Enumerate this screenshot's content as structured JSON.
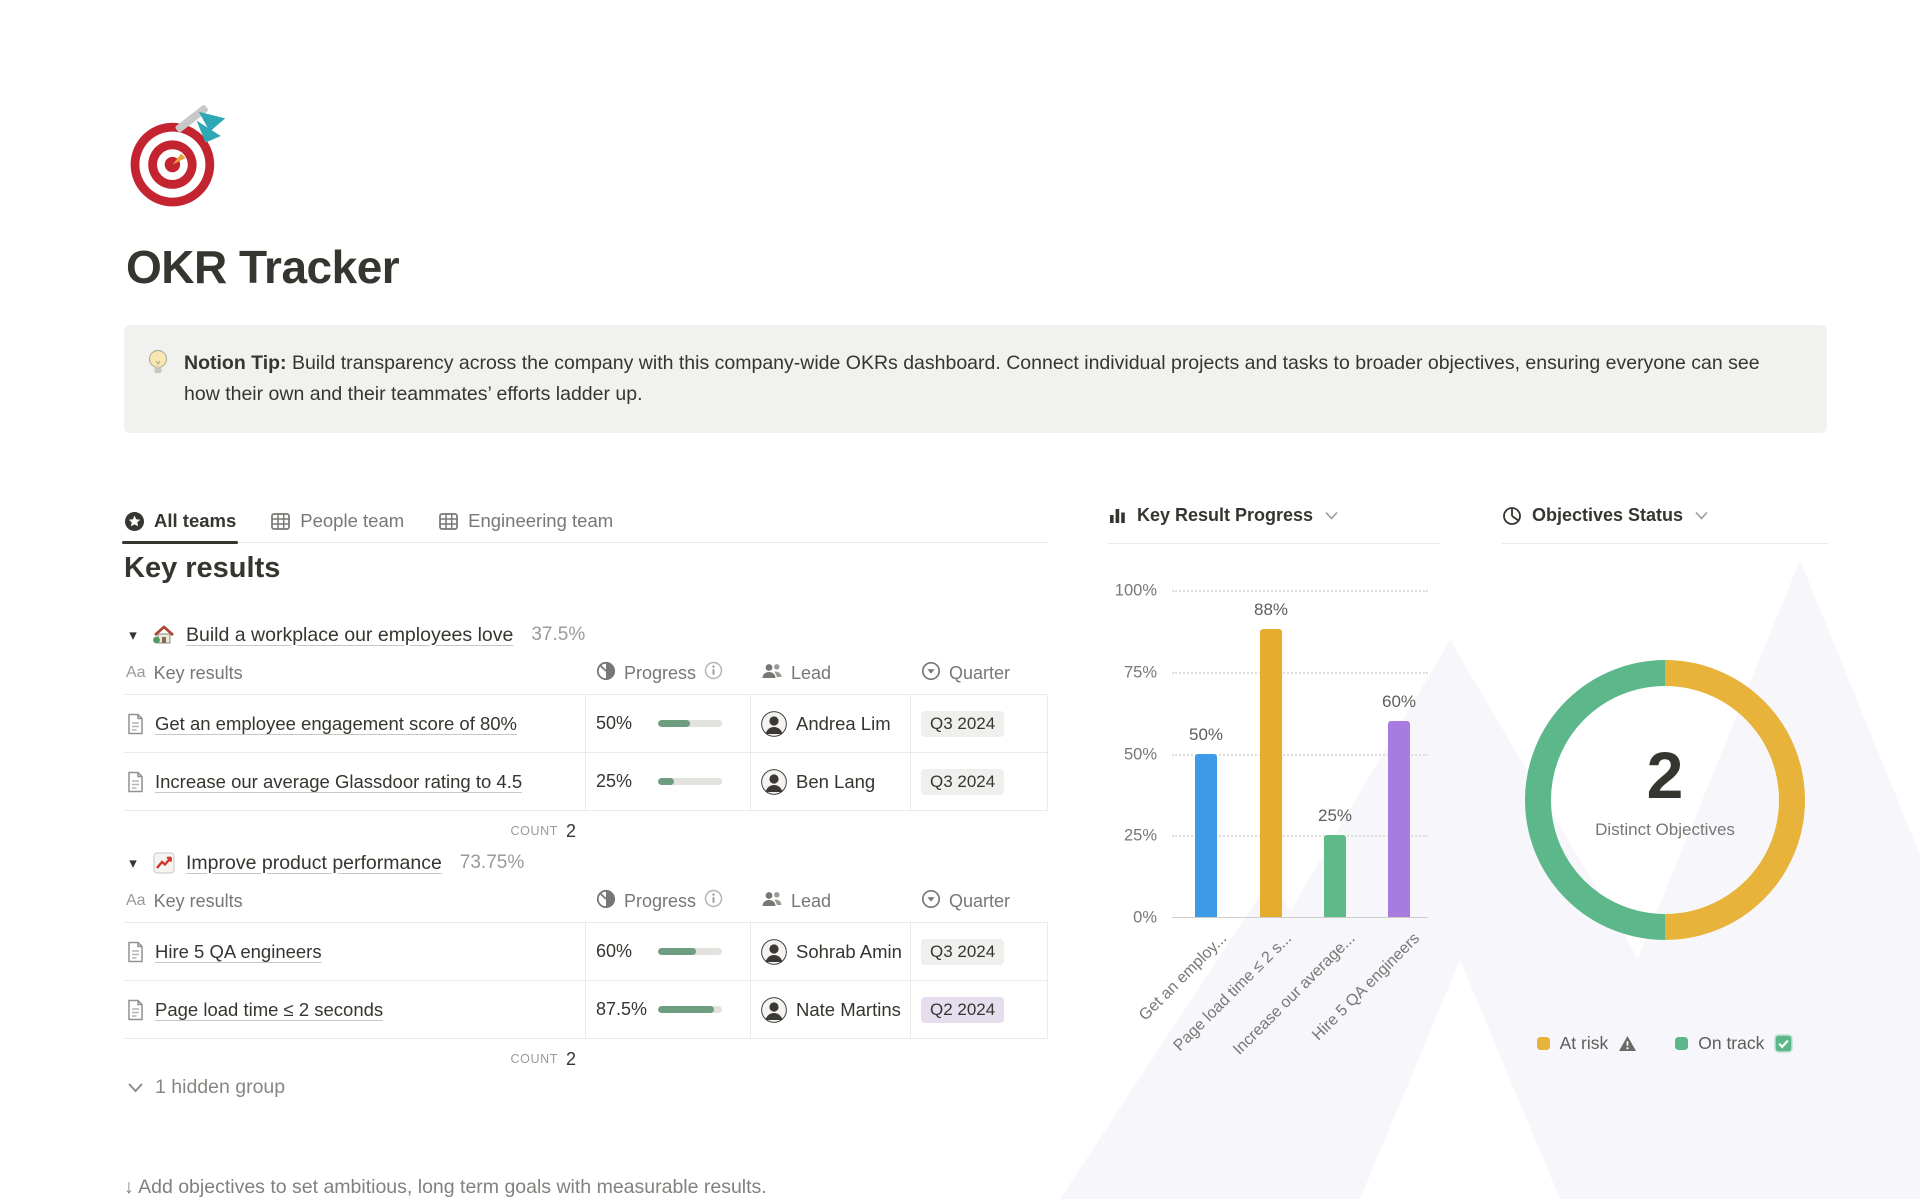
{
  "page": {
    "title": "OKR Tracker",
    "icon": "target-dart-icon"
  },
  "callout": {
    "icon": "light-bulb-icon",
    "bold": "Notion Tip:",
    "text": " Build transparency across the company with this company-wide OKRs dashboard. Connect individual projects and tasks to broader objectives, ensuring everyone can see how their own and their teammates’ efforts ladder up."
  },
  "tabs": [
    {
      "label": "All teams",
      "icon": "star-circle-icon",
      "active": true
    },
    {
      "label": "People team",
      "icon": "table-view-icon",
      "active": false
    },
    {
      "label": "Engineering team",
      "icon": "table-view-icon",
      "active": false
    }
  ],
  "section_heading": "Key results",
  "table_header": {
    "title_icon": "Aa",
    "title": "Key results",
    "progress": "Progress",
    "lead": "Lead",
    "quarter": "Quarter"
  },
  "groups": [
    {
      "icon": "house-garden-icon",
      "title": "Build a workplace our employees love",
      "percent": "37.5%",
      "count_label": "COUNT",
      "count": "2",
      "rows": [
        {
          "title": "Get an employee engagement score of 80%",
          "progress": "50%",
          "progress_value": 50,
          "lead": "Andrea Lim",
          "quarter": "Q3 2024",
          "quarter_color": "gray"
        },
        {
          "title": "Increase our average Glassdoor rating to 4.5",
          "progress": "25%",
          "progress_value": 25,
          "lead": "Ben Lang",
          "quarter": "Q3 2024",
          "quarter_color": "gray"
        }
      ]
    },
    {
      "icon": "chart-increasing-icon",
      "title": "Improve product performance",
      "percent": "73.75%",
      "count_label": "COUNT",
      "count": "2",
      "rows": [
        {
          "title": "Hire 5 QA engineers",
          "progress": "60%",
          "progress_value": 60,
          "lead": "Sohrab Amin",
          "quarter": "Q3 2024",
          "quarter_color": "gray"
        },
        {
          "title": "Page load time ≤ 2 seconds",
          "progress": "87.5%",
          "progress_value": 87.5,
          "lead": "Nate Martins",
          "quarter": "Q2 2024",
          "quarter_color": "purple"
        }
      ]
    }
  ],
  "hidden_group_label": "1 hidden group",
  "footer_hint": "↓ Add objectives to set ambitious, long term goals with measurable results.",
  "colors": {
    "progress_fill": "#6f9d80",
    "bar_blue": "#3d9ae8",
    "bar_yellow": "#e6ac2e",
    "bar_green": "#5fba8a",
    "bar_purple": "#a87be0",
    "donut_green": "#5cb88a",
    "donut_yellow": "#e8b33b",
    "at_risk": "#e8b33b",
    "on_track": "#5cb88a"
  },
  "chart_data": [
    {
      "type": "bar",
      "title": "Key Result Progress",
      "categories": [
        "Get an employ...",
        "Page load time ≤ 2 s...",
        "Increase our average...",
        "Hire 5 QA engineers"
      ],
      "values": [
        50,
        88,
        25,
        60
      ],
      "data_labels": [
        "50%",
        "88%",
        "25%",
        "60%"
      ],
      "bar_colors": [
        "#3d9ae8",
        "#e6ac2e",
        "#5fba8a",
        "#a87be0"
      ],
      "ylabel": "",
      "xlabel": "",
      "ylim": [
        0,
        100
      ],
      "yticks": [
        "100%",
        "75%",
        "50%",
        "25%",
        "0%"
      ],
      "grid": "dotted horizontal",
      "legend_position": "none"
    },
    {
      "type": "pie",
      "title": "Objectives Status",
      "center_value": "2",
      "center_label": "Distinct Objectives",
      "slices": [
        {
          "label": "At risk",
          "value": 1,
          "color": "#e8b33b",
          "legend_icon": "warning-icon"
        },
        {
          "label": "On track",
          "value": 1,
          "color": "#5cb88a",
          "legend_icon": "check-box-icon"
        }
      ],
      "legend_position": "bottom"
    }
  ],
  "chart_panels": {
    "bar_title": "Key Result Progress",
    "donut_title": "Objectives Status"
  }
}
